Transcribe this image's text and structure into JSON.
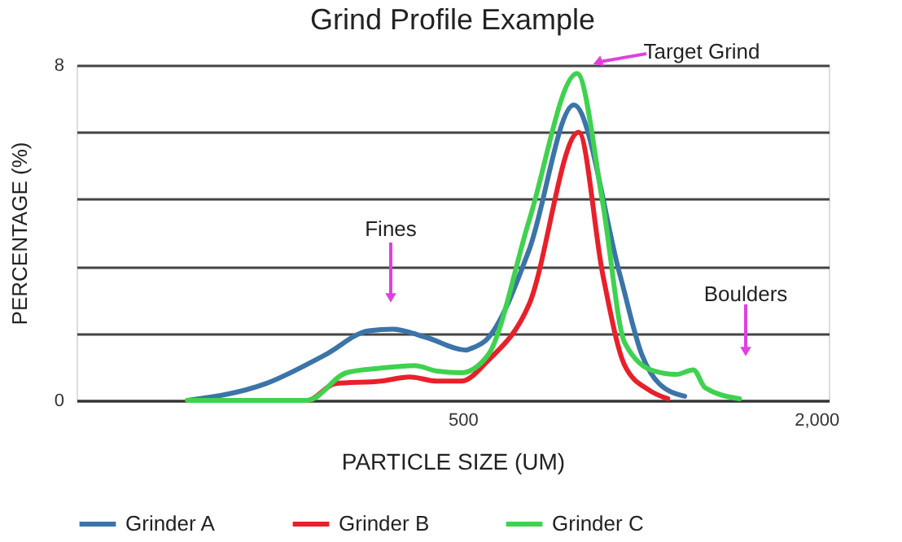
{
  "chart_data": {
    "type": "line",
    "title": "Grind Profile Example",
    "xlabel": "PARTICLE SIZE (UM)",
    "ylabel": "PERCENTAGE (%)",
    "log": "x",
    "xlim": [
      110,
      2100
    ],
    "xticks": [
      500,
      {
        "value": 2000,
        "label": "2,000"
      }
    ],
    "ylim": [
      0,
      8
    ],
    "yticks": [
      0,
      {
        "value": 1.6,
        "label": null
      },
      {
        "value": 3.2,
        "label": null
      },
      {
        "value": 4.8,
        "label": null
      },
      {
        "value": 6.4,
        "label": null
      },
      8
    ],
    "grid": "y",
    "legend": "bottom",
    "marker": "none",
    "line_style": "solid",
    "series": [
      {
        "name": "Grinder A",
        "color": "#3b74a8",
        "x": [
          170,
          231,
          291,
          346,
          380,
          434,
          507,
          517,
          549,
          649,
          773,
          926,
          1010,
          1080,
          1194
        ],
        "values": [
          0,
          0.4,
          1.08,
          1.66,
          1.7,
          1.5,
          1.2,
          1.24,
          1.45,
          3.6,
          7.05,
          3.0,
          1.08,
          0.4,
          0.1
        ]
      },
      {
        "name": "Grinder B",
        "color": "#e8202a",
        "x": [
          170,
          272,
          303,
          363,
          406,
          452,
          497,
          552,
          649,
          788,
          866,
          944,
          1037,
          1117
        ],
        "values": [
          0,
          0,
          0.4,
          0.46,
          0.56,
          0.46,
          0.46,
          0.95,
          2.3,
          6.4,
          3.0,
          0.83,
          0.25,
          0.04
        ]
      },
      {
        "name": "Grinder C",
        "color": "#3fd24f",
        "x": [
          170,
          272,
          317,
          363,
          414,
          452,
          497,
          552,
          649,
          783,
          866,
          944,
          1059,
          1155,
          1235,
          1294,
          1480
        ],
        "values": [
          0,
          0,
          0.66,
          0.77,
          0.83,
          0.7,
          0.66,
          1.08,
          4.3,
          7.8,
          4.7,
          1.37,
          0.7,
          0.62,
          0.73,
          0.3,
          0.04
        ]
      }
    ],
    "annotations": [
      "Fines",
      "Target Grind",
      "Boulders"
    ]
  }
}
